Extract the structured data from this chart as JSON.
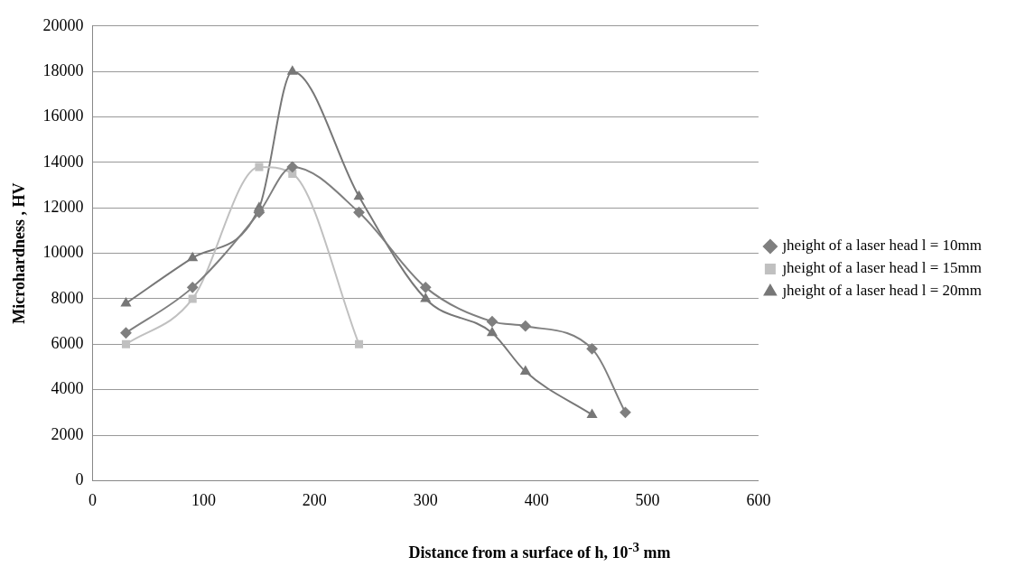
{
  "chart_data": {
    "type": "line",
    "xlabel": "Distance from a surface of h, 10$^{-3}$ mm",
    "ylabel": "Microhardness , HV",
    "xlim": [
      0,
      600
    ],
    "xticks": [
      0,
      100,
      200,
      300,
      400,
      500,
      600
    ],
    "ylim": [
      0,
      20000
    ],
    "yticks": [
      0,
      2000,
      4000,
      6000,
      8000,
      10000,
      12000,
      14000,
      16000,
      18000,
      20000
    ],
    "grid": "y",
    "legend": "right",
    "series": [
      {
        "name": "ȷheight of a laser head l = 10mm",
        "color": "#7f7f7f",
        "marker": "diamond",
        "x": [
          30,
          90,
          150,
          180,
          240,
          300,
          360,
          390,
          450,
          480
        ],
        "values": [
          6500,
          8500,
          11800,
          13800,
          11800,
          8500,
          7000,
          6800,
          5800,
          3000
        ]
      },
      {
        "name": "ȷheight of a laser head l = 15mm",
        "color": "#c0c0c0",
        "marker": "square",
        "x": [
          30,
          90,
          150,
          180,
          240
        ],
        "values": [
          6000,
          8000,
          13800,
          13500,
          6000
        ]
      },
      {
        "name": "ȷheight of a laser head l = 20mm",
        "color": "#777777",
        "marker": "triangle",
        "x": [
          30,
          90,
          150,
          180,
          240,
          300,
          360,
          390,
          450
        ],
        "values": [
          7800,
          9800,
          12000,
          18000,
          12500,
          8000,
          6500,
          4800,
          2900
        ]
      }
    ]
  }
}
